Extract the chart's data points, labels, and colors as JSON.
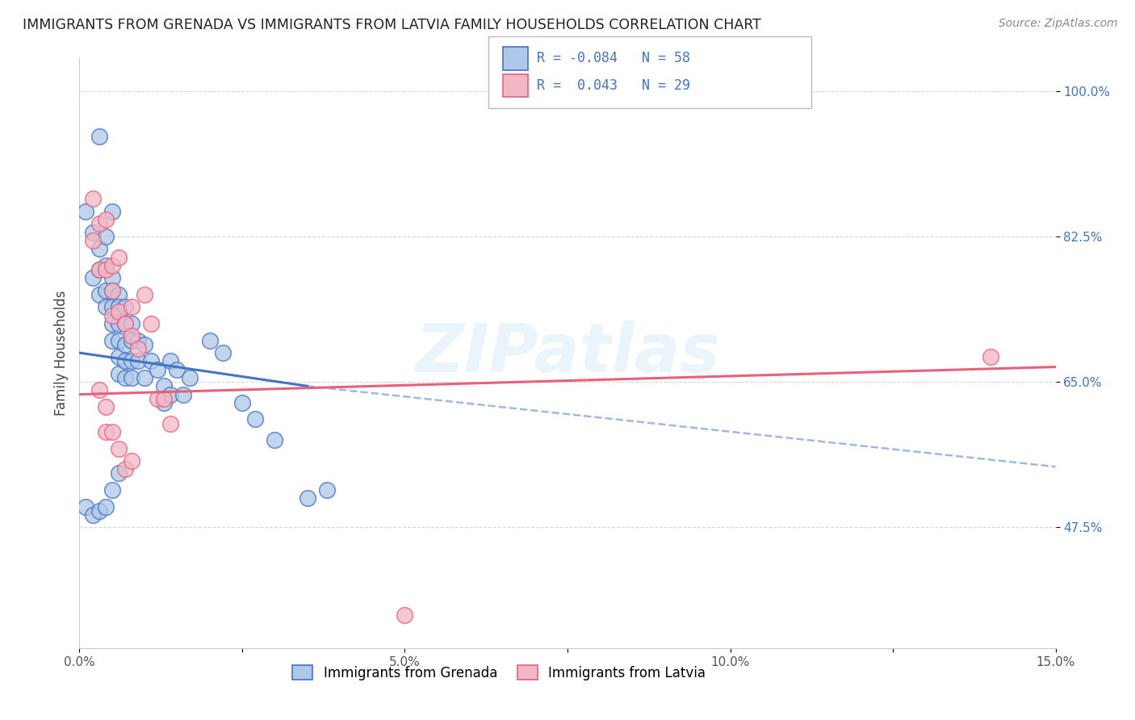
{
  "title": "IMMIGRANTS FROM GRENADA VS IMMIGRANTS FROM LATVIA FAMILY HOUSEHOLDS CORRELATION CHART",
  "source": "Source: ZipAtlas.com",
  "ylabel": "Family Households",
  "xlim": [
    0.0,
    0.15
  ],
  "ylim": [
    0.33,
    1.04
  ],
  "yticks": [
    0.475,
    0.65,
    0.825,
    1.0
  ],
  "ytick_labels": [
    "47.5%",
    "65.0%",
    "82.5%",
    "100.0%"
  ],
  "xticks": [
    0.0,
    0.025,
    0.05,
    0.075,
    0.1,
    0.125,
    0.15
  ],
  "xtick_labels": [
    "0.0%",
    "",
    "5.0%",
    "",
    "10.0%",
    "",
    "15.0%"
  ],
  "legend_R_grenada": "-0.084",
  "legend_N_grenada": "58",
  "legend_R_latvia": "0.043",
  "legend_N_latvia": "29",
  "color_grenada": "#adc8e8",
  "color_latvia": "#f2b8c6",
  "line_color_grenada": "#4472c4",
  "line_color_latvia": "#e8607a",
  "watermark": "ZIPatlas",
  "grenada_x": [
    0.003,
    0.005,
    0.001,
    0.002,
    0.002,
    0.003,
    0.003,
    0.003,
    0.004,
    0.004,
    0.004,
    0.004,
    0.005,
    0.005,
    0.005,
    0.005,
    0.005,
    0.006,
    0.006,
    0.006,
    0.006,
    0.006,
    0.006,
    0.007,
    0.007,
    0.007,
    0.007,
    0.007,
    0.008,
    0.008,
    0.008,
    0.008,
    0.009,
    0.009,
    0.01,
    0.01,
    0.011,
    0.012,
    0.013,
    0.013,
    0.014,
    0.014,
    0.015,
    0.016,
    0.017,
    0.02,
    0.022,
    0.025,
    0.027,
    0.03,
    0.035,
    0.038,
    0.001,
    0.002,
    0.003,
    0.004,
    0.005,
    0.006
  ],
  "grenada_y": [
    0.945,
    0.855,
    0.855,
    0.83,
    0.775,
    0.81,
    0.785,
    0.755,
    0.825,
    0.79,
    0.76,
    0.74,
    0.775,
    0.76,
    0.74,
    0.72,
    0.7,
    0.755,
    0.74,
    0.72,
    0.7,
    0.68,
    0.66,
    0.74,
    0.72,
    0.695,
    0.675,
    0.655,
    0.72,
    0.7,
    0.675,
    0.655,
    0.7,
    0.675,
    0.695,
    0.655,
    0.675,
    0.665,
    0.645,
    0.625,
    0.675,
    0.635,
    0.665,
    0.635,
    0.655,
    0.7,
    0.685,
    0.625,
    0.605,
    0.58,
    0.51,
    0.52,
    0.5,
    0.49,
    0.495,
    0.5,
    0.52,
    0.54
  ],
  "latvia_x": [
    0.002,
    0.002,
    0.003,
    0.003,
    0.004,
    0.004,
    0.005,
    0.005,
    0.005,
    0.006,
    0.006,
    0.007,
    0.008,
    0.008,
    0.009,
    0.01,
    0.011,
    0.012,
    0.013,
    0.014,
    0.003,
    0.004,
    0.004,
    0.005,
    0.006,
    0.007,
    0.008,
    0.14,
    0.05
  ],
  "latvia_y": [
    0.87,
    0.82,
    0.84,
    0.785,
    0.845,
    0.785,
    0.79,
    0.76,
    0.73,
    0.8,
    0.735,
    0.72,
    0.74,
    0.705,
    0.69,
    0.755,
    0.72,
    0.63,
    0.63,
    0.6,
    0.64,
    0.62,
    0.59,
    0.59,
    0.57,
    0.545,
    0.555,
    0.68,
    0.37
  ],
  "grenada_line_x": [
    0.0,
    0.035
  ],
  "grenada_line_y": [
    0.685,
    0.645
  ],
  "latvia_line_x": [
    0.0,
    0.15
  ],
  "latvia_line_y": [
    0.635,
    0.668
  ],
  "dash_line_x": [
    0.035,
    0.15
  ],
  "dash_line_y": [
    0.645,
    0.548
  ],
  "background_color": "#ffffff",
  "grid_color": "#cccccc"
}
